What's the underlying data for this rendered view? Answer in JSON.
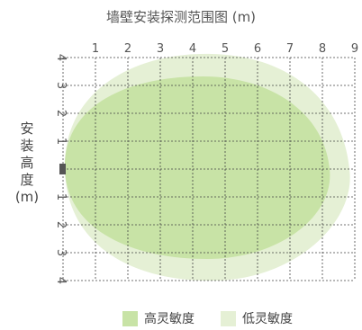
{
  "title": "墙壁安装探测范围图 (m)",
  "side_label": {
    "chars": [
      "安",
      "装",
      "高",
      "度"
    ],
    "unit": "(m)"
  },
  "x_ticks": [
    "1",
    "2",
    "3",
    "4",
    "5",
    "6",
    "7",
    "8",
    "9"
  ],
  "y_ticks_top": [
    "4",
    "3",
    "2",
    "1"
  ],
  "y_ticks_bottom": [
    "1",
    "2",
    "3",
    "4"
  ],
  "legend": [
    {
      "label": "高灵敏度",
      "color": "#c8e3a6"
    },
    {
      "label": "低灵敏度",
      "color": "#e5f0d5"
    }
  ],
  "colors": {
    "high": "#c8e3a6",
    "low": "#e5f0d5",
    "grid": "#444444",
    "sensor": "#555555"
  }
}
